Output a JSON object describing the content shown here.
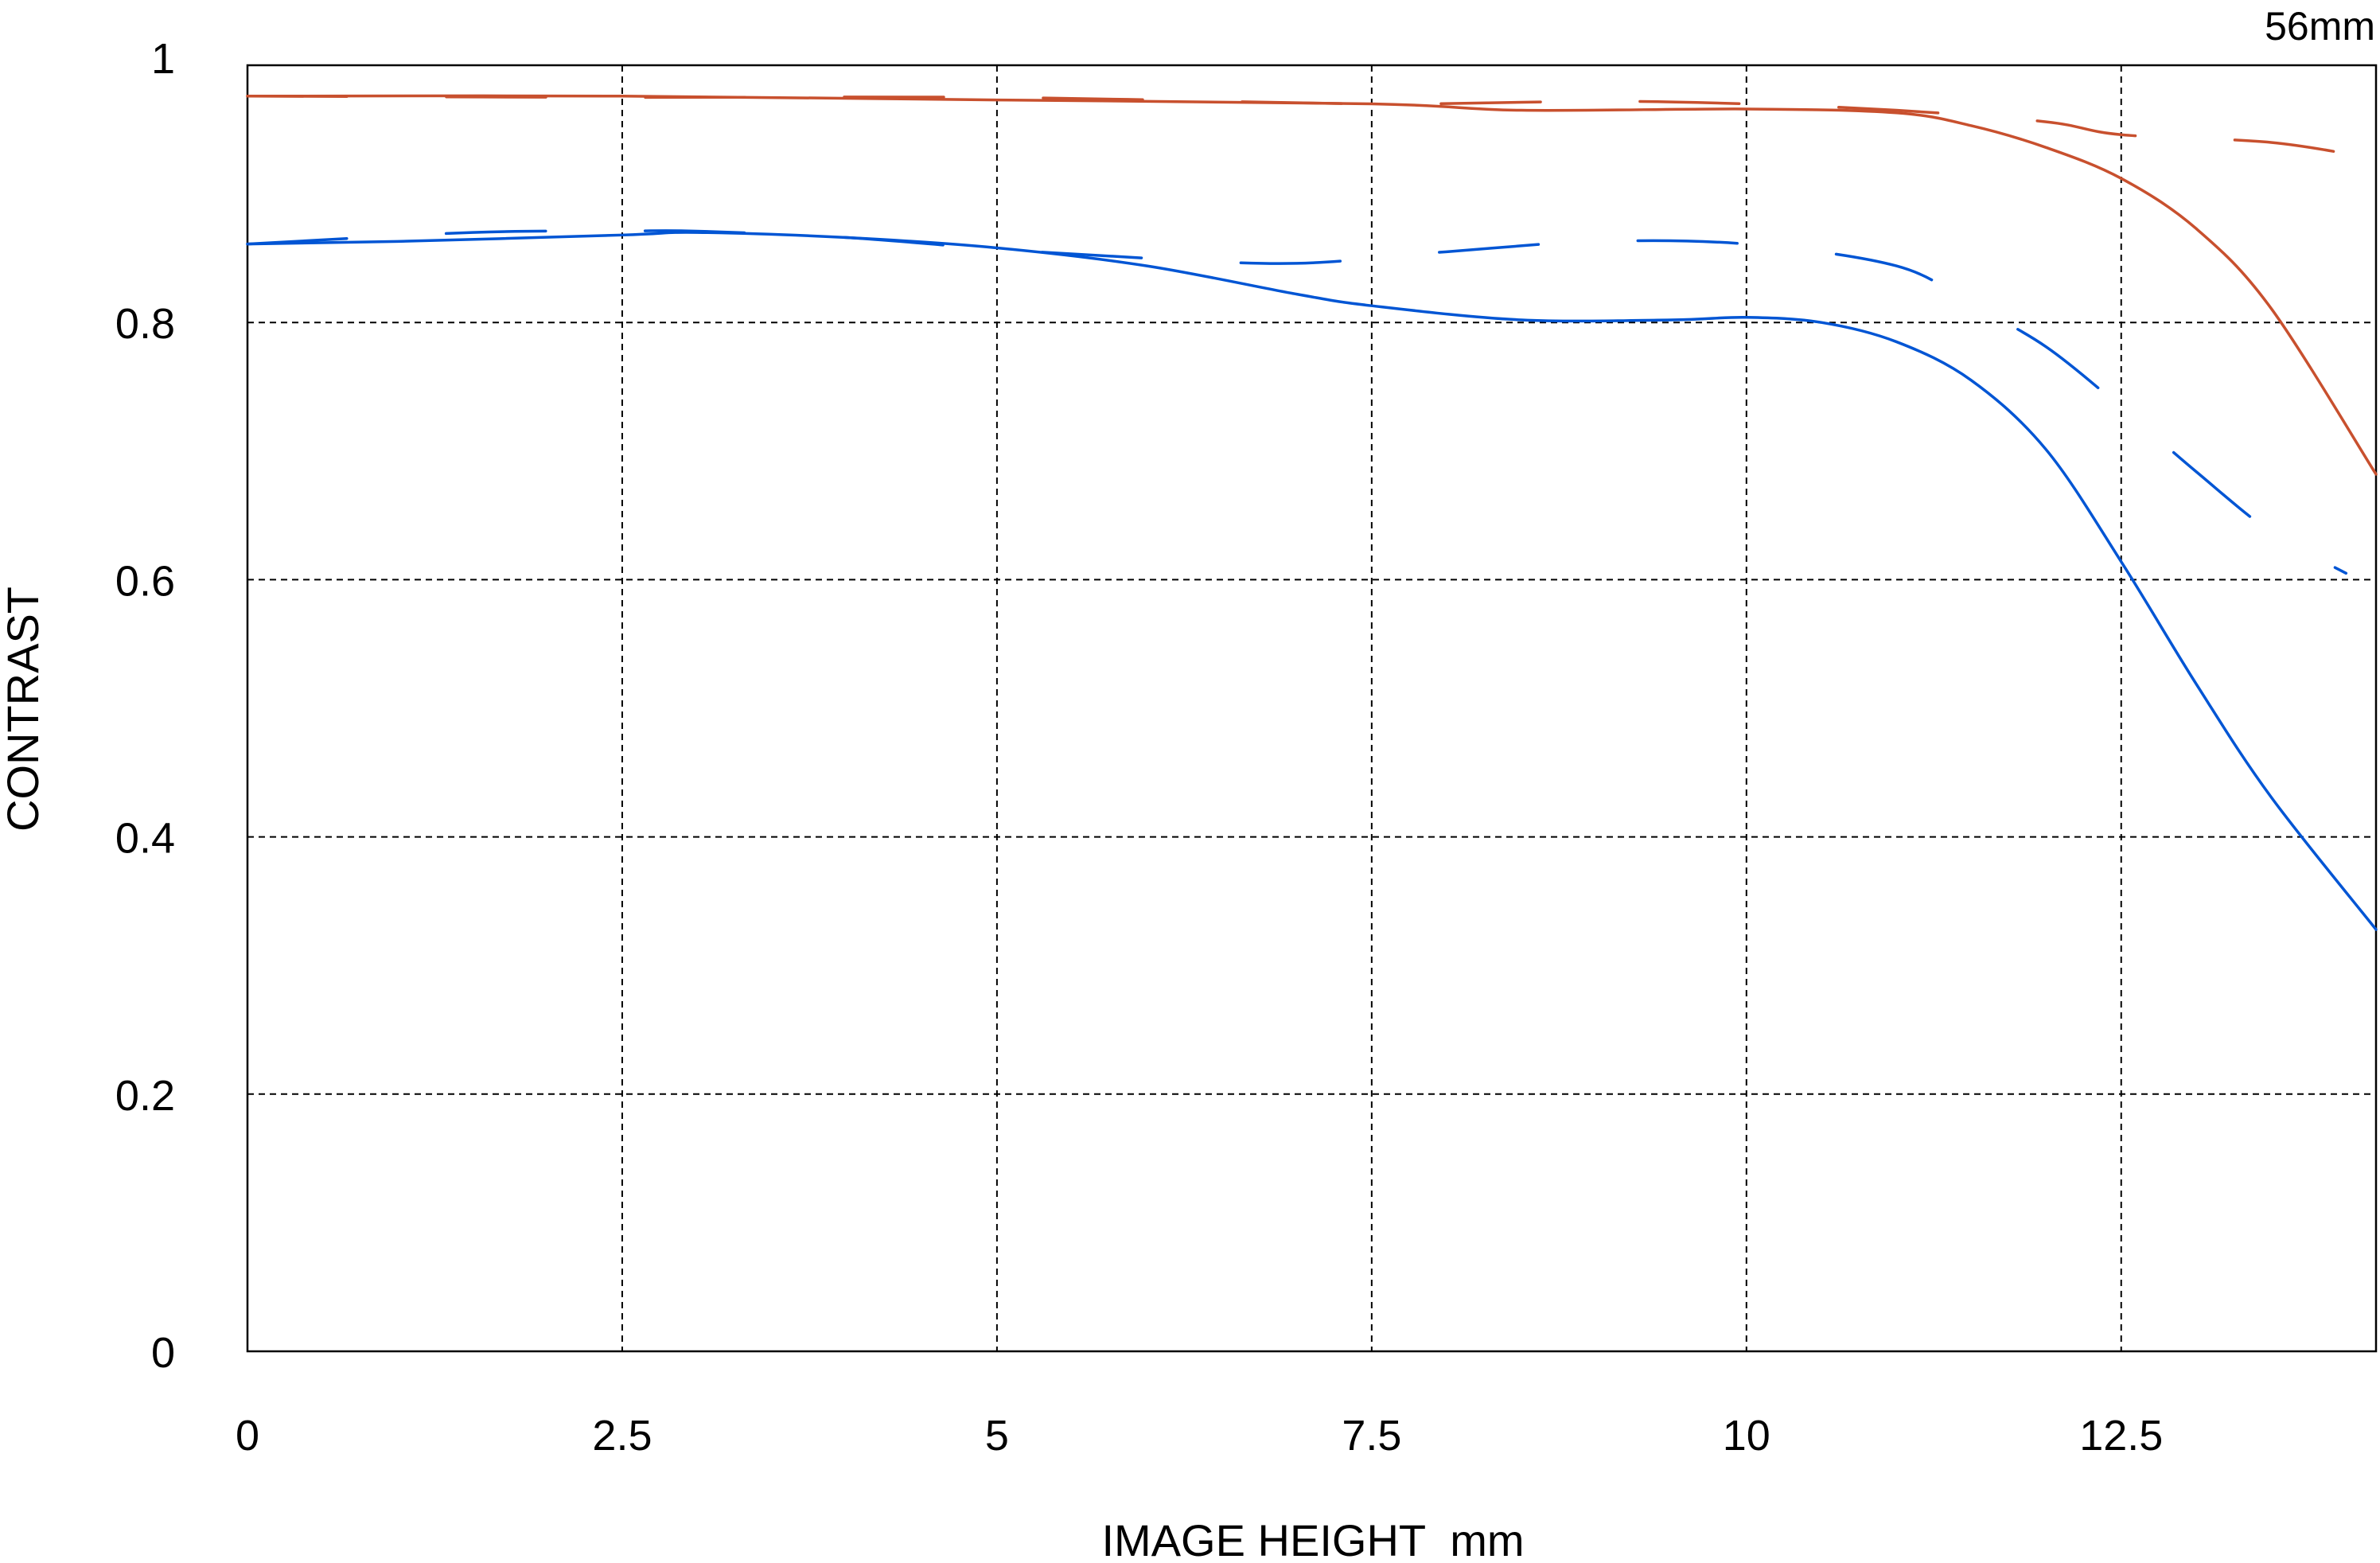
{
  "chart_data": {
    "type": "line",
    "title": "56mm",
    "xlabel": "IMAGE HEIGHT  mm",
    "ylabel": "CONTRAST",
    "xlim": [
      0,
      14.2
    ],
    "ylim": [
      0,
      1
    ],
    "xticks": [
      0,
      2.5,
      5,
      7.5,
      10,
      12.5
    ],
    "xtick_labels": [
      "0",
      "2.5",
      "5",
      "7.5",
      "10",
      "12.5"
    ],
    "yticks": [
      0,
      0.2,
      0.4,
      0.6,
      0.8,
      1
    ],
    "ytick_labels": [
      "0",
      "0.2",
      "0.4",
      "0.6",
      "0.8",
      "1"
    ],
    "grid": true,
    "series": [
      {
        "color": "#c8502e",
        "style": "solid",
        "x": [
          0,
          2.5,
          5,
          7.5,
          8.5,
          10,
          11,
          11.5,
          12,
          12.5,
          13,
          13.5,
          14.2
        ],
        "y": [
          0.976,
          0.976,
          0.973,
          0.97,
          0.965,
          0.966,
          0.963,
          0.953,
          0.936,
          0.912,
          0.873,
          0.811,
          0.682
        ]
      },
      {
        "color": "#c8502e",
        "style": "dashed",
        "x": [
          0,
          2.5,
          5,
          7.5,
          9,
          10,
          11,
          12,
          12.5,
          13.5,
          14.2
        ],
        "y": [
          0.976,
          0.975,
          0.975,
          0.97,
          0.972,
          0.97,
          0.965,
          0.956,
          0.946,
          0.94,
          0.927
        ]
      },
      {
        "color": "#0055d4",
        "style": "solid",
        "x": [
          0,
          1,
          2.5,
          3,
          4,
          5,
          6,
          7,
          7.5,
          8.5,
          9.5,
          10,
          10.5,
          11,
          11.5,
          12,
          12.5,
          13,
          13.5,
          14.2
        ],
        "y": [
          0.861,
          0.863,
          0.868,
          0.87,
          0.866,
          0.858,
          0.844,
          0.822,
          0.813,
          0.802,
          0.802,
          0.804,
          0.8,
          0.785,
          0.755,
          0.701,
          0.614,
          0.519,
          0.431,
          0.328
        ]
      },
      {
        "color": "#0055d4",
        "style": "dashed",
        "x": [
          0,
          1.5,
          2.5,
          3,
          4,
          5,
          6,
          7,
          8,
          9,
          10,
          11,
          11.5,
          12,
          12.5,
          13,
          13.5,
          14
        ],
        "y": [
          0.861,
          0.87,
          0.871,
          0.871,
          0.866,
          0.857,
          0.85,
          0.846,
          0.855,
          0.863,
          0.861,
          0.844,
          0.814,
          0.781,
          0.734,
          0.684,
          0.637,
          0.605
        ]
      }
    ]
  }
}
